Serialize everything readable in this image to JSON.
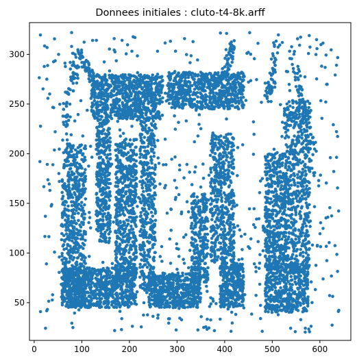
{
  "chart_data": {
    "type": "scatter",
    "title": "Donnees initiales : cluto-t4-8k.arff",
    "xlabel": "",
    "ylabel": "",
    "xlim": [
      -10,
      665
    ],
    "ylim": [
      12,
      332
    ],
    "xticks": [
      0,
      100,
      200,
      300,
      400,
      500,
      600
    ],
    "yticks": [
      50,
      100,
      150,
      200,
      250,
      300
    ],
    "grid": false,
    "legend": "none",
    "marker_color": "#1f77b4",
    "approx_points": 8000,
    "series": [
      {
        "values_description_regions": [
          {
            "shape": "rect",
            "x": [
              58,
              108
            ],
            "y": [
              45,
              210
            ],
            "n": 600
          },
          {
            "shape": "rect",
            "x": [
              58,
              215
            ],
            "y": [
              45,
              85
            ],
            "n": 700
          },
          {
            "shape": "rect",
            "x": [
              120,
              270
            ],
            "y": [
              235,
              280
            ],
            "n": 750
          },
          {
            "shape": "rect",
            "x": [
              130,
              160
            ],
            "y": [
              110,
              235
            ],
            "n": 350
          },
          {
            "shape": "rect",
            "x": [
              170,
              215
            ],
            "y": [
              70,
              215
            ],
            "n": 550
          },
          {
            "shape": "rect",
            "x": [
              222,
              255
            ],
            "y": [
              60,
              235
            ],
            "n": 400
          },
          {
            "shape": "rect",
            "x": [
              240,
              350
            ],
            "y": [
              45,
              80
            ],
            "n": 550
          },
          {
            "shape": "rect",
            "x": [
              280,
              440
            ],
            "y": [
              245,
              282
            ],
            "n": 650
          },
          {
            "shape": "rect",
            "x": [
              330,
              365
            ],
            "y": [
              70,
              160
            ],
            "n": 280
          },
          {
            "shape": "rect",
            "x": [
              370,
              420
            ],
            "y": [
              90,
              220
            ],
            "n": 500
          },
          {
            "shape": "rect",
            "x": [
              390,
              440
            ],
            "y": [
              45,
              90
            ],
            "n": 300
          },
          {
            "shape": "rect",
            "x": [
              485,
              575
            ],
            "y": [
              40,
              90
            ],
            "n": 450
          },
          {
            "shape": "rect",
            "x": [
              485,
              530
            ],
            "y": [
              85,
              200
            ],
            "n": 450
          },
          {
            "shape": "rect",
            "x": [
              525,
              580
            ],
            "y": [
              80,
              255
            ],
            "n": 600
          },
          {
            "shape": "line",
            "from": [
              60,
              220
            ],
            "to": [
              95,
              305
            ],
            "n": 60
          },
          {
            "shape": "line",
            "from": [
              95,
              305
            ],
            "to": [
              130,
              265
            ],
            "n": 50
          },
          {
            "shape": "line",
            "from": [
              400,
              280
            ],
            "to": [
              420,
              310
            ],
            "n": 40
          },
          {
            "shape": "line",
            "from": [
              490,
              250
            ],
            "to": [
              510,
              310
            ],
            "n": 50
          },
          {
            "shape": "line",
            "from": [
              540,
              305
            ],
            "to": [
              590,
              200
            ],
            "n": 60
          },
          {
            "shape": "noise",
            "x": [
              10,
              640
            ],
            "y": [
              20,
              322
            ],
            "n": 700
          }
        ]
      }
    ]
  }
}
